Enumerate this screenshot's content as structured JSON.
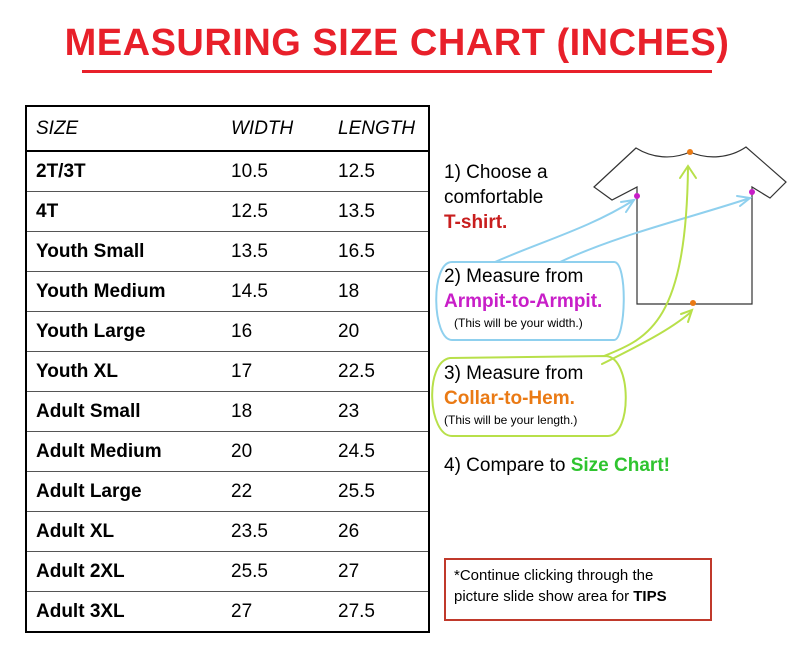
{
  "title": "MEASURING SIZE CHART (INCHES)",
  "table": {
    "headers": [
      "SIZE",
      "WIDTH",
      "LENGTH"
    ],
    "rows": [
      {
        "size": "2T/3T",
        "width": "10.5",
        "length": "12.5"
      },
      {
        "size": "4T",
        "width": "12.5",
        "length": "13.5"
      },
      {
        "size": "Youth Small",
        "width": "13.5",
        "length": "16.5"
      },
      {
        "size": "Youth Medium",
        "width": "14.5",
        "length": "18"
      },
      {
        "size": "Youth Large",
        "width": "16",
        "length": "20"
      },
      {
        "size": "Youth XL",
        "width": "17",
        "length": "22.5"
      },
      {
        "size": "Adult Small",
        "width": "18",
        "length": "23"
      },
      {
        "size": "Adult Medium",
        "width": "20",
        "length": "24.5"
      },
      {
        "size": "Adult Large",
        "width": "22",
        "length": "25.5"
      },
      {
        "size": "Adult XL",
        "width": "23.5",
        "length": "26"
      },
      {
        "size": "Adult 2XL",
        "width": "25.5",
        "length": "27"
      },
      {
        "size": "Adult 3XL",
        "width": "27",
        "length": "27.5"
      }
    ]
  },
  "steps": {
    "s1_line1": "1) Choose a",
    "s1_line2": "comfortable",
    "s1_highlight": "T-shirt.",
    "s2_line1": "2) Measure from",
    "s2_highlight": "Armpit-to-Armpit.",
    "s2_note": "(This will be your width.)",
    "s3_line1": "3) Measure from",
    "s3_highlight": "Collar-to-Hem.",
    "s3_note": "(This will be your length.)",
    "s4_line1": "4) Compare to",
    "s4_highlight": "Size Chart!"
  },
  "tip": {
    "text": "*Continue clicking through the picture slide show area for",
    "bold": "TIPS"
  },
  "colors": {
    "title": "#e8202a",
    "armpit": "#c81ec8",
    "collar": "#ea7a14",
    "size_chart": "#2fc42f",
    "blue_annotation": "#8fd0ee",
    "green_annotation": "#b8e04a"
  }
}
